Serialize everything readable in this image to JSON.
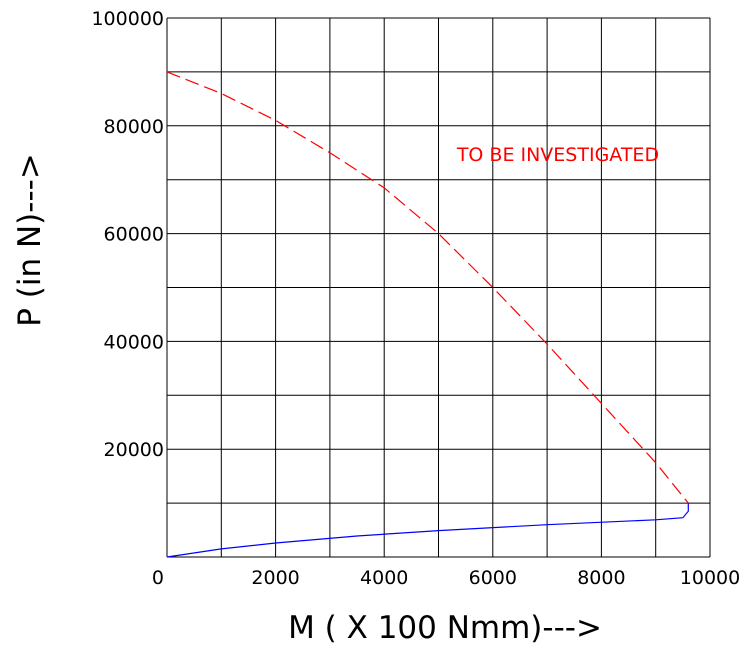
{
  "chart_data": {
    "type": "line",
    "xlabel": "M ( X 100 Nmm)--->",
    "ylabel": "P (in N)--->",
    "xlim": [
      0,
      10000
    ],
    "ylim": [
      0,
      100000
    ],
    "xticks": [
      0,
      2000,
      4000,
      6000,
      8000,
      10000
    ],
    "yticks": [
      20000,
      40000,
      60000,
      80000,
      100000
    ],
    "xtick_labels": [
      "0",
      "2000",
      "4000",
      "6000",
      "8000",
      "10000"
    ],
    "ytick_labels": [
      "20000",
      "40000",
      "60000",
      "80000",
      "100000"
    ],
    "x_grid_step": 1000,
    "y_grid_step": 10000,
    "grid": true,
    "annotations": [
      {
        "text": "TO BE INVESTIGATED",
        "color": "#ff0000",
        "x": 7200,
        "y": 73500
      }
    ],
    "series": [
      {
        "color": "#ff0000",
        "style": "dashed",
        "points": [
          [
            0,
            90000
          ],
          [
            1000,
            86000
          ],
          [
            2000,
            81000
          ],
          [
            3000,
            75000
          ],
          [
            4000,
            68500
          ],
          [
            5000,
            60000
          ],
          [
            6000,
            50000
          ],
          [
            7000,
            39500
          ],
          [
            8000,
            28500
          ],
          [
            9000,
            17500
          ],
          [
            9600,
            10000
          ]
        ]
      },
      {
        "color": "#0000ff",
        "style": "solid",
        "points": [
          [
            0,
            0
          ],
          [
            1000,
            1500
          ],
          [
            2000,
            2600
          ],
          [
            3500,
            3900
          ],
          [
            5000,
            4900
          ],
          [
            7000,
            6000
          ],
          [
            9000,
            6900
          ],
          [
            9500,
            7300
          ],
          [
            9600,
            8500
          ],
          [
            9600,
            10000
          ]
        ]
      }
    ]
  }
}
